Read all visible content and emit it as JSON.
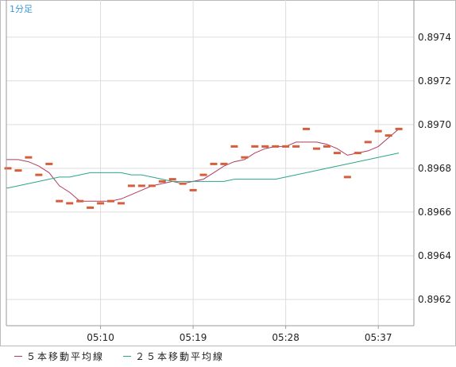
{
  "period_label": "1分足",
  "chart_data": {
    "type": "line",
    "x_tick_labels": [
      "05:10",
      "05:19",
      "05:28",
      "05:37"
    ],
    "y_tick_labels": [
      "0.8962",
      "0.8964",
      "0.8966",
      "0.8968",
      "0.8970",
      "0.8972",
      "0.8974"
    ],
    "ylim": [
      0.89608,
      0.89757
    ],
    "grid": true,
    "legend_position": "bottom-left",
    "colors": {
      "price": "#d45f3c",
      "ma5": "#b03c5c",
      "ma25": "#2aa58a",
      "grid": "#dddddd",
      "frame": "#9a9a9a"
    },
    "x_ticks_at_index": [
      9,
      18,
      27,
      36
    ],
    "price": [
      0.8968,
      0.89679,
      0.89685,
      0.89677,
      0.89682,
      0.89665,
      0.89664,
      0.89665,
      0.89662,
      0.89664,
      0.89665,
      0.89664,
      0.89672,
      0.89672,
      0.89672,
      0.89674,
      0.89675,
      0.89673,
      0.8967,
      0.89677,
      0.89682,
      0.89682,
      0.8969,
      0.89685,
      0.8969,
      0.8969,
      0.8969,
      0.8969,
      0.8969,
      0.89698,
      0.89689,
      0.8969,
      0.89687,
      0.89676,
      0.89687,
      0.89692,
      0.89697,
      0.89695,
      0.89698
    ],
    "series": [
      {
        "name": "５本移動平均線",
        "values": [
          0.89684,
          0.89684,
          0.89683,
          0.89681,
          0.89678,
          0.89672,
          0.89669,
          0.89665,
          0.89665,
          0.89665,
          0.89665,
          0.89666,
          0.89668,
          0.8967,
          0.89672,
          0.89673,
          0.89674,
          0.89673,
          0.89674,
          0.89675,
          0.89678,
          0.89681,
          0.89683,
          0.89684,
          0.89687,
          0.89689,
          0.8969,
          0.8969,
          0.89692,
          0.89692,
          0.89692,
          0.89691,
          0.89689,
          0.89686,
          0.89687,
          0.89688,
          0.8969,
          0.89694,
          0.89698
        ]
      },
      {
        "name": "２５本移動平均線",
        "values": [
          0.89671,
          0.89672,
          0.89673,
          0.89674,
          0.89675,
          0.89676,
          0.89676,
          0.89677,
          0.89678,
          0.89678,
          0.89678,
          0.89678,
          0.89677,
          0.89677,
          0.89676,
          0.89675,
          0.89674,
          0.89674,
          0.89674,
          0.89674,
          0.89674,
          0.89674,
          0.89675,
          0.89675,
          0.89675,
          0.89675,
          0.89675,
          0.89676,
          0.89677,
          0.89678,
          0.89679,
          0.8968,
          0.89681,
          0.89682,
          0.89683,
          0.89684,
          0.89685,
          0.89686,
          0.89687
        ]
      }
    ]
  }
}
